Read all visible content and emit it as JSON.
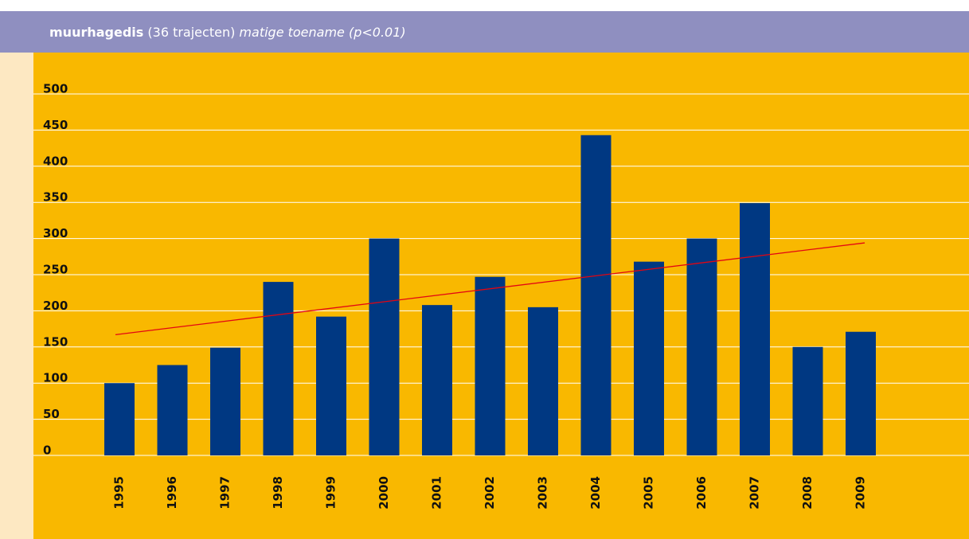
{
  "chart_data": {
    "type": "bar",
    "title": "muurhagedis",
    "subtitle": "(36 trajecten)",
    "annotation": "matige toename (p<0.01)",
    "categories": [
      "1995",
      "1996",
      "1997",
      "1998",
      "1999",
      "2000",
      "2001",
      "2002",
      "2003",
      "2004",
      "2005",
      "2006",
      "2007",
      "2008",
      "2009"
    ],
    "values": [
      100,
      125,
      149,
      240,
      192,
      300,
      208,
      247,
      205,
      443,
      268,
      300,
      349,
      150,
      171
    ],
    "color": "#003882",
    "trend": {
      "color": "#e30613",
      "values": [
        167,
        294
      ]
    },
    "ylim": [
      0,
      500
    ],
    "yticks": [
      0,
      50,
      100,
      150,
      200,
      250,
      300,
      350,
      400,
      450,
      500
    ],
    "grid": true
  }
}
